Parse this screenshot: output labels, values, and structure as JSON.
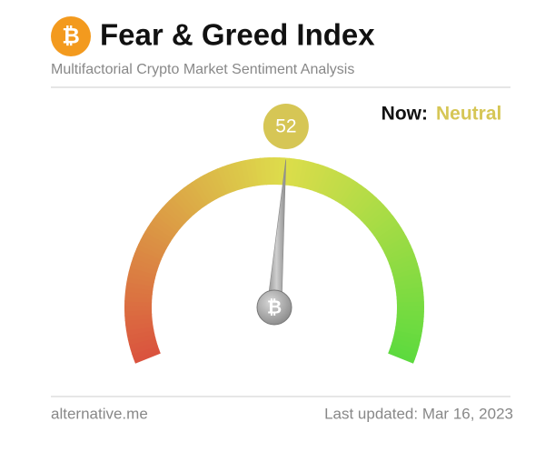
{
  "chart_data": {
    "type": "gauge",
    "title": "Fear & Greed Index",
    "subtitle": "Multifactorial Crypto Market Sentiment Analysis",
    "status_label": "Now:",
    "status": "Neutral",
    "value": 52,
    "range": [
      0,
      100
    ],
    "color": "#d6c655",
    "source": "alternative.me",
    "updated": "Last updated: Mar 16, 2023"
  }
}
